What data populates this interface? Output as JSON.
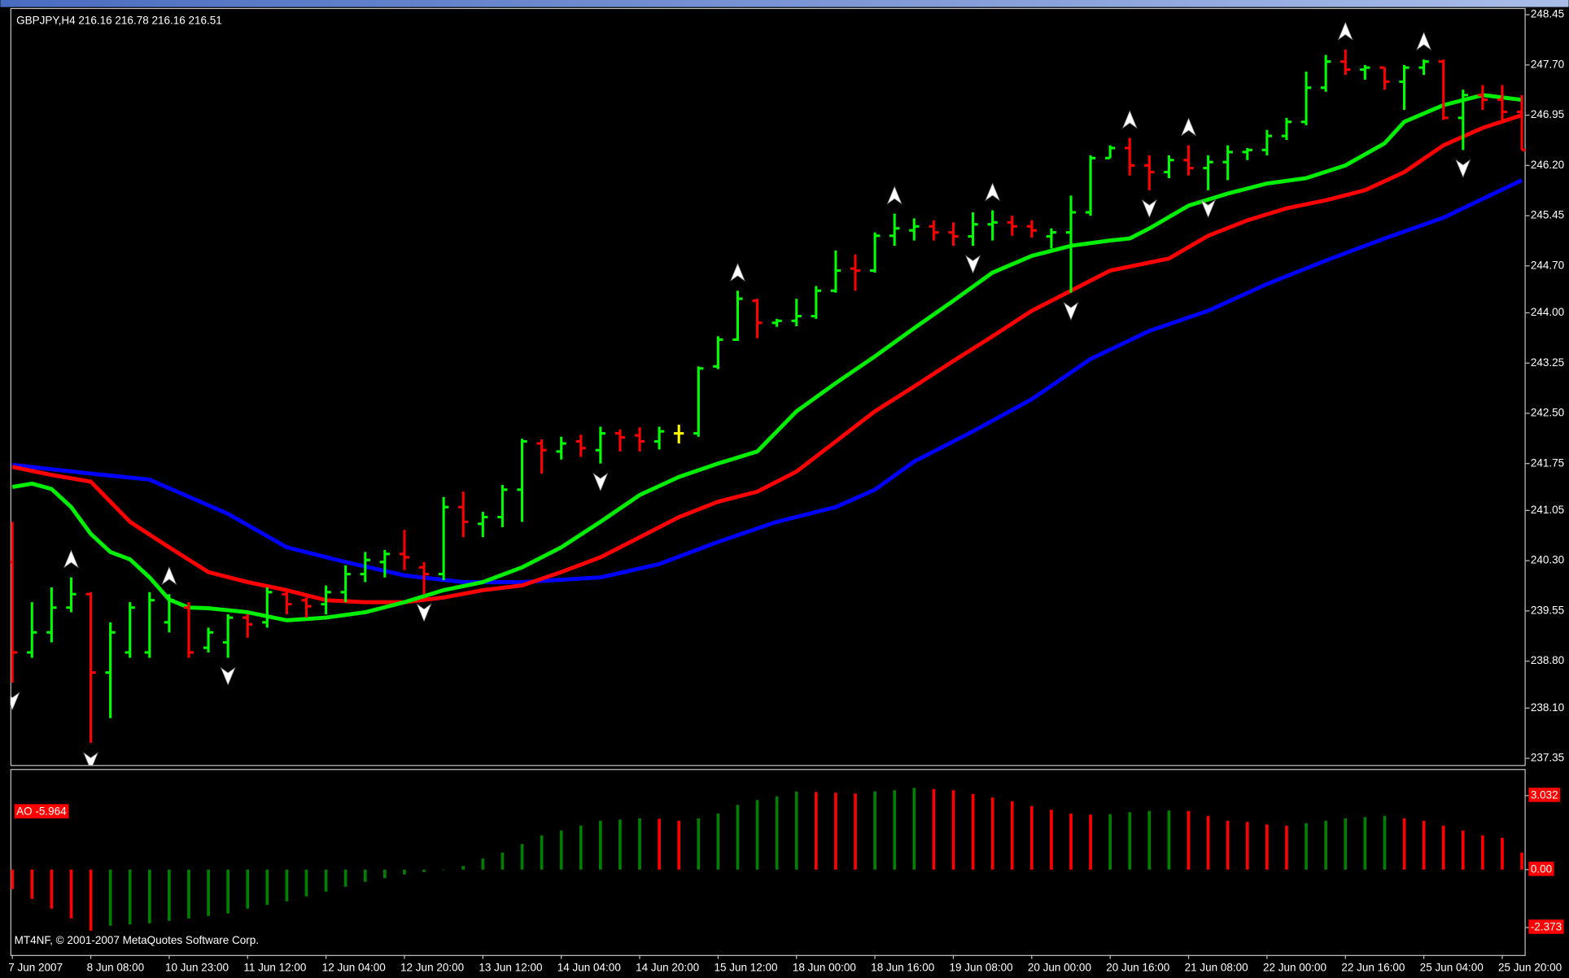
{
  "chart_data": [
    {
      "type": "ohlc",
      "title": "GBPJPY,H4  216.16 216.78 216.16 216.51",
      "categories": [
        "7 Jun 2007",
        null,
        null,
        null,
        "8 Jun 08:00",
        null,
        null,
        null,
        "10 Jun 23:00",
        null,
        null,
        null,
        "11 Jun 12:00",
        null,
        null,
        null,
        "12 Jun 04:00",
        null,
        null,
        null,
        "12 Jun 20:00",
        null,
        null,
        null,
        "13 Jun 12:00",
        null,
        null,
        null,
        "14 Jun 04:00",
        null,
        null,
        null,
        "14 Jun 20:00",
        null,
        null,
        null,
        "15 Jun 12:00",
        null,
        null,
        null,
        "18 Jun 00:00",
        null,
        null,
        null,
        "18 Jun 16:00",
        null,
        null,
        null,
        "19 Jun 08:00",
        null,
        null,
        null,
        "20 Jun 00:00",
        null,
        null,
        null,
        "20 Jun 16:00",
        null,
        null,
        null,
        "21 Jun 08:00",
        null,
        null,
        null,
        "22 Jun 00:00",
        null,
        null,
        null,
        "22 Jun 16:00",
        null,
        null,
        null,
        "25 Jun 04:00",
        null,
        null,
        null,
        "25 Jun 20:00",
        null
      ],
      "open": [
        240.28,
        238.93,
        239.23,
        239.6,
        239.8,
        238.63,
        238.93,
        238.93,
        239.38,
        239.6,
        239.0,
        239.08,
        239.45,
        239.38,
        239.8,
        239.71,
        239.65,
        239.83,
        240.1,
        240.28,
        240.4,
        240.2,
        240.1,
        241.1,
        240.85,
        240.95,
        241.36,
        242.05,
        241.93,
        242.08,
        241.95,
        242.2,
        242.17,
        242.08,
        242.2,
        242.2,
        243.2,
        243.6,
        244.18,
        243.85,
        243.88,
        243.95,
        244.33,
        244.66,
        244.63,
        245.15,
        245.23,
        245.29,
        245.2,
        245.14,
        245.32,
        245.35,
        245.29,
        245.14,
        245.2,
        245.5,
        246.31,
        246.46,
        246.2,
        246.1,
        246.28,
        246.16,
        246.25,
        246.4,
        246.43,
        246.64,
        246.85,
        247.36,
        247.75,
        247.63,
        247.66,
        247.45,
        247.66,
        247.75,
        246.91,
        247.25,
        247.18,
        247.0
      ],
      "high": [
        240.88,
        239.68,
        239.9,
        240.05,
        239.83,
        239.38,
        239.68,
        239.83,
        239.8,
        239.68,
        239.3,
        239.5,
        239.5,
        239.9,
        239.86,
        239.75,
        239.93,
        240.23,
        240.43,
        240.46,
        240.76,
        240.28,
        241.25,
        241.33,
        241.03,
        241.43,
        242.12,
        242.11,
        242.15,
        242.18,
        242.3,
        242.26,
        242.29,
        242.3,
        242.33,
        243.2,
        243.65,
        244.33,
        244.21,
        243.91,
        244.21,
        244.4,
        244.93,
        244.87,
        245.2,
        245.48,
        245.41,
        245.38,
        245.35,
        245.5,
        245.53,
        245.45,
        245.38,
        245.26,
        245.75,
        246.35,
        246.5,
        246.61,
        246.35,
        246.35,
        246.5,
        246.35,
        246.5,
        246.46,
        246.73,
        246.91,
        247.6,
        247.85,
        247.93,
        247.7,
        247.66,
        247.7,
        247.78,
        247.78,
        247.33,
        247.4,
        247.4,
        247.25
      ],
      "low": [
        238.48,
        238.85,
        239.08,
        239.53,
        237.58,
        237.95,
        238.85,
        238.85,
        239.23,
        238.85,
        238.93,
        238.85,
        239.15,
        239.3,
        239.5,
        239.45,
        239.5,
        239.68,
        239.98,
        240.05,
        240.16,
        239.8,
        240.01,
        240.65,
        240.65,
        240.8,
        240.88,
        241.6,
        241.81,
        241.85,
        241.75,
        241.93,
        241.93,
        241.96,
        242.05,
        242.15,
        243.16,
        243.58,
        243.62,
        243.79,
        243.8,
        243.91,
        244.3,
        244.33,
        244.6,
        245.0,
        245.08,
        245.08,
        245.0,
        245.0,
        245.08,
        245.15,
        245.12,
        244.96,
        244.3,
        245.45,
        246.31,
        246.05,
        245.83,
        246.01,
        246.05,
        245.83,
        245.98,
        246.28,
        246.35,
        246.58,
        246.8,
        247.3,
        247.55,
        247.48,
        247.33,
        247.03,
        247.55,
        246.88,
        246.43,
        247.03,
        246.88,
        246.43
      ],
      "close": [
        238.93,
        239.23,
        239.6,
        239.8,
        238.63,
        239.23,
        239.6,
        239.71,
        239.71,
        238.93,
        239.23,
        239.45,
        239.35,
        239.83,
        239.65,
        239.62,
        239.83,
        240.1,
        240.31,
        240.4,
        240.35,
        240.1,
        241.1,
        240.88,
        240.95,
        241.36,
        242.08,
        241.95,
        242.05,
        241.98,
        242.2,
        242.14,
        242.08,
        242.23,
        242.2,
        243.17,
        243.6,
        244.21,
        243.85,
        243.88,
        243.95,
        244.33,
        244.63,
        244.63,
        245.15,
        245.26,
        245.29,
        245.2,
        245.14,
        245.32,
        245.35,
        245.29,
        245.23,
        245.2,
        245.5,
        246.31,
        246.46,
        246.2,
        246.1,
        246.28,
        246.16,
        246.25,
        246.4,
        246.43,
        246.64,
        246.85,
        247.36,
        247.75,
        247.63,
        247.66,
        247.45,
        247.66,
        247.75,
        246.91,
        247.25,
        247.18,
        247.0,
        246.43
      ],
      "up_color": "#00ff00",
      "down_color": "#ff0000",
      "doji_color": "#ffff00",
      "ylim": [
        237.25,
        248.55
      ],
      "yticks": [
        248.45,
        {
          "value": 247.7,
          "label": "247.70"
        },
        246.95,
        {
          "value": 246.2,
          "label": "246.20"
        },
        245.45,
        {
          "value": 244.7,
          "label": "244.70"
        },
        {
          "value": 244,
          "label": "244.00"
        },
        243.25,
        {
          "value": 242.5,
          "label": "242.50"
        },
        241.75,
        241.05,
        {
          "value": 240.3,
          "label": "240.30"
        },
        239.55,
        {
          "value": 238.8,
          "label": "238.80"
        },
        {
          "value": 238.1,
          "label": "238.10"
        },
        237.35
      ],
      "lines": [
        {
          "color": "#0000ff",
          "x": [
            0,
            4,
            7,
            11,
            14,
            17,
            20,
            23,
            26,
            30,
            33,
            36,
            39,
            42,
            44,
            46,
            49,
            52,
            55,
            58,
            61,
            64,
            67,
            70,
            73,
            77
          ],
          "values": [
            241.73,
            241.6,
            241.51,
            241.0,
            240.5,
            240.28,
            240.08,
            239.98,
            239.98,
            240.05,
            240.25,
            240.58,
            240.88,
            241.1,
            241.36,
            241.78,
            242.23,
            242.71,
            243.31,
            243.73,
            244.03,
            244.43,
            244.78,
            245.11,
            245.42,
            245.98
          ]
        },
        {
          "color": "#ff0000",
          "x": [
            0,
            2,
            4,
            6,
            8,
            10,
            12,
            14,
            16,
            18,
            20,
            22,
            24,
            26,
            28,
            30,
            32,
            34,
            36,
            38,
            40,
            42,
            44,
            46,
            48,
            50,
            52,
            54,
            56,
            58,
            59,
            61,
            63,
            65,
            67,
            69,
            71,
            73,
            75,
            77
          ],
          "values": [
            241.7,
            241.58,
            241.48,
            240.88,
            240.5,
            240.13,
            239.98,
            239.86,
            239.71,
            239.68,
            239.68,
            239.75,
            239.86,
            239.93,
            240.13,
            240.35,
            240.65,
            240.95,
            241.18,
            241.33,
            241.63,
            242.08,
            242.53,
            242.9,
            243.28,
            243.65,
            244.03,
            244.33,
            244.63,
            244.75,
            244.81,
            245.15,
            245.38,
            245.56,
            245.68,
            245.83,
            246.1,
            246.5,
            246.76,
            246.95
          ]
        },
        {
          "color": "#00ee00",
          "x": [
            0,
            1,
            2,
            3,
            4,
            5,
            6,
            7,
            8,
            9,
            10,
            12,
            14,
            16,
            18,
            20,
            22,
            24,
            26,
            28,
            30,
            32,
            34,
            36,
            38,
            40,
            42,
            44,
            46,
            48,
            50,
            52,
            54,
            56,
            57,
            58,
            60,
            62,
            64,
            66,
            68,
            70,
            71,
            73,
            75,
            77
          ],
          "values": [
            241.4,
            241.45,
            241.37,
            241.1,
            240.7,
            240.43,
            240.32,
            240.05,
            239.72,
            239.6,
            239.59,
            239.53,
            239.41,
            239.45,
            239.53,
            239.68,
            239.86,
            239.98,
            240.2,
            240.5,
            240.88,
            241.28,
            241.55,
            241.75,
            241.93,
            242.53,
            242.95,
            243.35,
            243.77,
            244.18,
            244.6,
            244.85,
            245.0,
            245.08,
            245.11,
            245.26,
            245.6,
            245.78,
            245.93,
            246.01,
            246.2,
            246.53,
            246.85,
            247.1,
            247.25,
            247.18
          ]
        }
      ],
      "fractals_up": [
        3,
        8,
        37,
        45,
        50,
        57,
        60,
        68,
        72
      ],
      "fractals_down": [
        0,
        4,
        11,
        21,
        30,
        49,
        54,
        58,
        61,
        74
      ],
      "fractal_color": "#ffffff"
    },
    {
      "type": "bar",
      "title": "AO -5.964",
      "footer": "MT4NF, © 2001-2007 MetaQuotes Software Corp.",
      "values": [
        -0.8,
        -1.2,
        -1.6,
        -2.0,
        -2.5,
        -2.3,
        -2.25,
        -2.2,
        -2.1,
        -2.0,
        -1.9,
        -1.8,
        -1.6,
        -1.45,
        -1.3,
        -1.1,
        -0.9,
        -0.7,
        -0.5,
        -0.35,
        -0.2,
        -0.1,
        -0.02,
        0.15,
        0.45,
        0.7,
        1.05,
        1.4,
        1.6,
        1.8,
        2.0,
        2.05,
        2.1,
        2.08,
        2.0,
        2.1,
        2.3,
        2.65,
        2.85,
        3.0,
        3.2,
        3.18,
        3.15,
        3.12,
        3.2,
        3.25,
        3.35,
        3.3,
        3.25,
        3.1,
        2.95,
        2.8,
        2.6,
        2.45,
        2.3,
        2.25,
        2.27,
        2.35,
        2.4,
        2.42,
        2.4,
        2.2,
        2.0,
        1.95,
        1.85,
        1.8,
        1.9,
        2.0,
        2.1,
        2.15,
        2.2,
        2.1,
        2.0,
        1.8,
        1.6,
        1.4,
        1.3,
        0.7
      ],
      "up_color": "#008000",
      "down_color": "#ff0000",
      "label_color": "#ff0000",
      "ylim": [
        -3.5,
        4.0
      ],
      "yticks": [
        3.032,
        {
          "value": 0,
          "label": "0.00"
        },
        -2.373
      ]
    }
  ]
}
